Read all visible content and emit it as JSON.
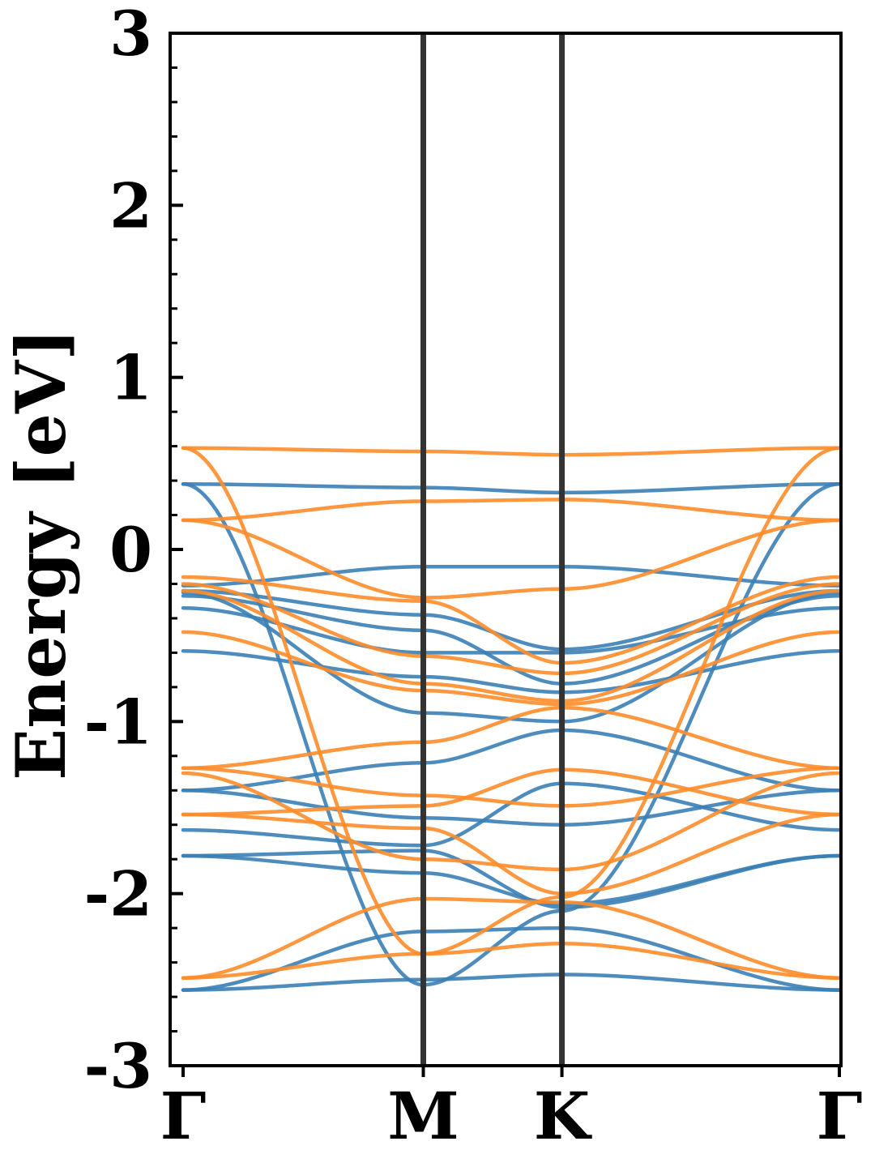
{
  "chart_data": {
    "type": "line",
    "title": "",
    "xlabel": "",
    "ylabel": "Energy [eV]",
    "ylim": [
      -3,
      3
    ],
    "y_ticks": [
      {
        "value": 3,
        "label": "3"
      },
      {
        "value": 2,
        "label": "2"
      },
      {
        "value": 1,
        "label": "1"
      },
      {
        "value": 0,
        "label": "0"
      },
      {
        "value": -1,
        "label": "-1"
      },
      {
        "value": -2,
        "label": "-2"
      },
      {
        "value": -3,
        "label": "-3"
      }
    ],
    "x_ticks": [
      {
        "value": 0,
        "label": "Γ"
      },
      {
        "value": 1,
        "label": "M"
      },
      {
        "value": 1.577,
        "label": "K"
      },
      {
        "value": 2.732,
        "label": "Γ"
      }
    ],
    "xlim": [
      0,
      2.732
    ],
    "vlines": [
      1,
      1.577
    ],
    "grid": false,
    "legend": "none",
    "colors": {
      "series_a": "#3a7fb5",
      "series_b": "#ff8c2a",
      "vline": "#333333"
    },
    "x": [
      0,
      1,
      1.577,
      2.732
    ],
    "series": [
      {
        "color": "series_a",
        "values": [
          0.38,
          0.36,
          0.33,
          0.38
        ]
      },
      {
        "color": "series_a",
        "values": [
          -0.21,
          -0.1,
          -0.1,
          -0.21
        ]
      },
      {
        "color": "series_a",
        "values": [
          -0.24,
          -0.38,
          -0.58,
          -0.24
        ]
      },
      {
        "color": "series_a",
        "values": [
          -0.27,
          -0.47,
          -0.78,
          -0.27
        ]
      },
      {
        "color": "series_a",
        "values": [
          -0.34,
          -0.6,
          -0.6,
          -0.34
        ]
      },
      {
        "color": "series_a",
        "values": [
          -0.59,
          -0.74,
          -0.83,
          -0.59
        ]
      },
      {
        "color": "series_a",
        "values": [
          -0.25,
          -0.95,
          -1.0,
          -0.25
        ]
      },
      {
        "color": "series_a",
        "values": [
          -1.4,
          -1.24,
          -1.05,
          -1.4
        ]
      },
      {
        "color": "series_a",
        "values": [
          -1.4,
          -1.56,
          -1.6,
          -1.4
        ]
      },
      {
        "color": "series_a",
        "values": [
          -1.63,
          -1.72,
          -1.36,
          -1.63
        ]
      },
      {
        "color": "series_a",
        "values": [
          -1.78,
          -1.75,
          -2.08,
          -1.78
        ]
      },
      {
        "color": "series_a",
        "values": [
          -1.78,
          -1.88,
          -2.06,
          -1.78
        ]
      },
      {
        "color": "series_a",
        "values": [
          -2.56,
          -2.22,
          -2.2,
          -2.56
        ]
      },
      {
        "color": "series_a",
        "values": [
          -2.56,
          -2.5,
          -2.47,
          -2.56
        ]
      },
      {
        "color": "series_a",
        "values": [
          0.38,
          -2.53,
          -2.1,
          0.38
        ]
      },
      {
        "color": "series_b",
        "values": [
          0.59,
          0.57,
          0.55,
          0.59
        ]
      },
      {
        "color": "series_b",
        "values": [
          0.17,
          0.28,
          0.29,
          0.17
        ]
      },
      {
        "color": "series_b",
        "values": [
          0.17,
          -0.28,
          -0.23,
          0.17
        ]
      },
      {
        "color": "series_b",
        "values": [
          -0.16,
          -0.3,
          -0.66,
          -0.16
        ]
      },
      {
        "color": "series_b",
        "values": [
          -0.2,
          -0.62,
          -0.72,
          -0.2
        ]
      },
      {
        "color": "series_b",
        "values": [
          -0.24,
          -0.78,
          -0.88,
          -0.24
        ]
      },
      {
        "color": "series_b",
        "values": [
          -0.48,
          -0.82,
          -0.9,
          -0.48
        ]
      },
      {
        "color": "series_b",
        "values": [
          -1.27,
          -1.12,
          -0.92,
          -1.27
        ]
      },
      {
        "color": "series_b",
        "values": [
          -1.27,
          -1.43,
          -1.49,
          -1.27
        ]
      },
      {
        "color": "series_b",
        "values": [
          -1.54,
          -1.49,
          -1.28,
          -1.54
        ]
      },
      {
        "color": "series_b",
        "values": [
          -1.54,
          -1.62,
          -2.0,
          -1.54
        ]
      },
      {
        "color": "series_b",
        "values": [
          -1.3,
          -1.8,
          -1.86,
          -1.3
        ]
      },
      {
        "color": "series_b",
        "values": [
          -2.49,
          -2.03,
          -2.05,
          -2.49
        ]
      },
      {
        "color": "series_b",
        "values": [
          -2.49,
          -2.35,
          -2.29,
          -2.49
        ]
      },
      {
        "color": "series_b",
        "values": [
          0.59,
          -2.35,
          -2.02,
          0.59
        ]
      }
    ]
  }
}
